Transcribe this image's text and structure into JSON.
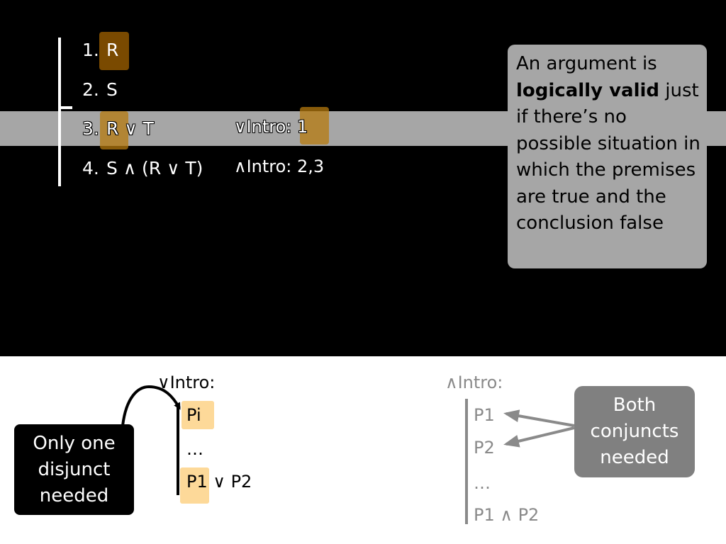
{
  "proof": {
    "lines": [
      {
        "num": "1.",
        "formula": "R",
        "justification": ""
      },
      {
        "num": "2.",
        "formula": "S",
        "justification": ""
      },
      {
        "num": "3.",
        "formula": "R ∨ T",
        "justification": "∨Intro: 1"
      },
      {
        "num": "4.",
        "formula": "S ∧ (R ∨ T)",
        "justification": "∧Intro: 2,3"
      }
    ]
  },
  "definition": {
    "pre": "An argument is",
    "bold": "logically valid",
    "post": " just if there’s no possible situation in which the premises are true and the conclusion false"
  },
  "or_intro": {
    "title": "∨Intro:",
    "row1": "Pi",
    "row2": "…",
    "row3_a": "P1",
    "row3_b": " ∨ P2",
    "callout": "Only one disjunct needed"
  },
  "and_intro": {
    "title": "∧Intro:",
    "row1": "P1",
    "row2": "P2",
    "row3": "…",
    "row4": "P1 ∧ P2",
    "callout": "Both conjuncts needed"
  },
  "colors": {
    "band": "#a6a6a6",
    "highlight": "#b6790e",
    "peach": "#fdd999",
    "callout_gray": "#808080"
  }
}
